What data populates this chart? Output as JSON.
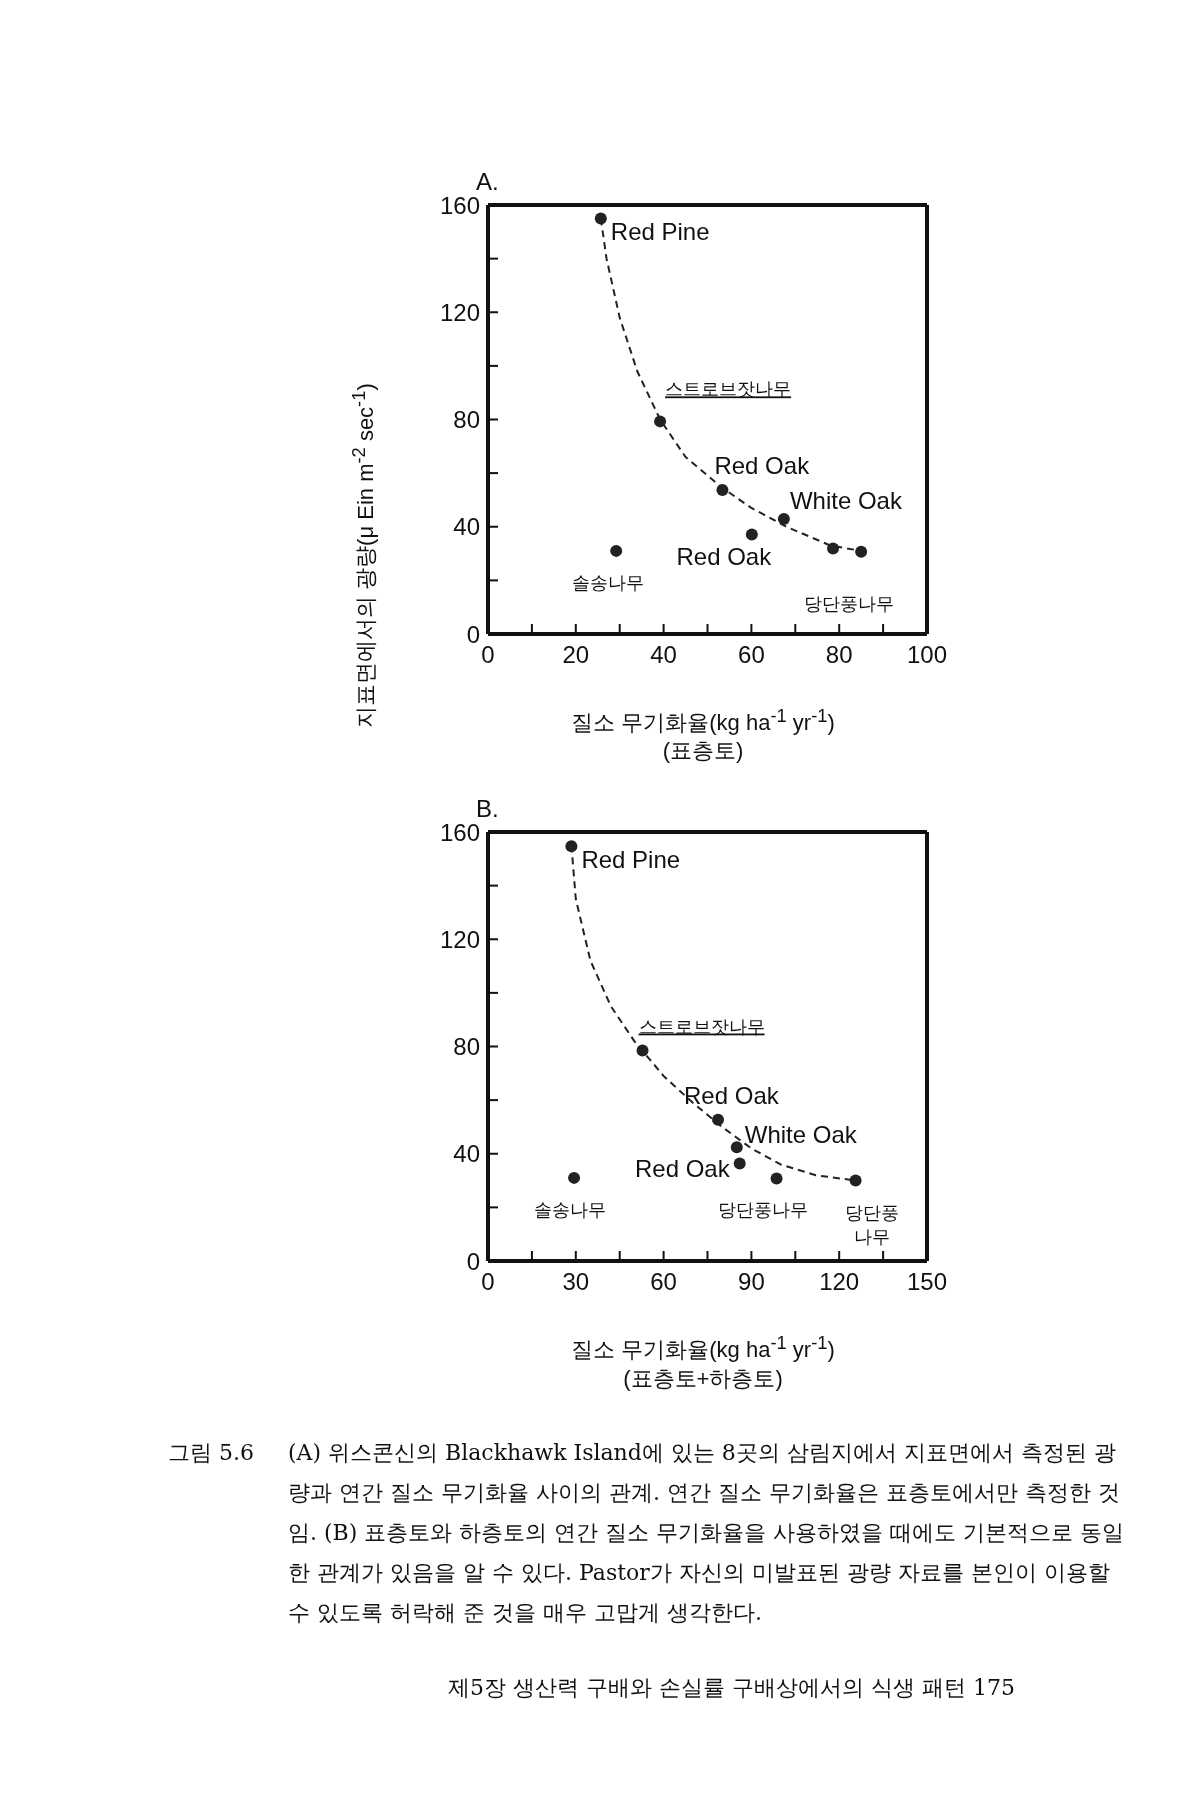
{
  "chart_data": [
    {
      "type": "scatter",
      "title": "A.",
      "xlabel": "질소 무기화율(kg ha$^{-1}$ yr$^{-1}$)\n(표층토)",
      "ylabel": "지표면에서의 광량(μ Ein m$^{-2}$ sec$^{-1}$)",
      "xlim": [
        0,
        100
      ],
      "ylim": [
        0,
        160
      ],
      "xticks": [
        0,
        {
          "value": 10,
          "label": null
        },
        20,
        {
          "value": 30,
          "label": null
        },
        40,
        {
          "value": 50,
          "label": null
        },
        60,
        {
          "value": 70,
          "label": null
        },
        80,
        {
          "value": 90,
          "label": null
        },
        100
      ],
      "yticks": [
        0,
        {
          "value": 20,
          "label": null
        },
        40,
        {
          "value": 60,
          "label": null
        },
        80,
        {
          "value": 100,
          "label": null
        },
        120,
        {
          "value": 140,
          "label": null
        },
        160
      ],
      "marker": "circle",
      "series": [
        {
          "color": "#222222",
          "x": [
            25.7,
            39.2,
            53.4,
            67.4,
            60.1,
            29.2,
            78.6,
            85
          ],
          "values": [
            155,
            79.3,
            53.7,
            42.9,
            37.1,
            31,
            31.9,
            30.7
          ]
        },
        {
          "type": "line",
          "color": "#222222",
          "line_style": "dashed",
          "marker": "none",
          "x": [
            25.7,
            27,
            30,
            34,
            39.2,
            45,
            53,
            60,
            68,
            78,
            85
          ],
          "values": [
            155,
            140,
            118,
            98,
            80,
            66,
            55,
            47,
            40,
            33,
            31
          ]
        }
      ],
      "annotations": [
        {
          "text": "Red Pine",
          "x": 25.7,
          "y": 155
        },
        {
          "text": "스트로브잣나무",
          "x": 39.2,
          "y": 79.3
        },
        {
          "text": "Red Oak",
          "x": 53.4,
          "y": 53.7
        },
        {
          "text": "White Oak",
          "x": 67.4,
          "y": 42.9
        },
        {
          "text": "Red Oak",
          "x": 60.1,
          "y": 37.1
        },
        {
          "text": "솔송나무",
          "x": 29.2,
          "y": 31
        },
        {
          "text": "당단풍나무",
          "x": 85,
          "y": 30.7
        }
      ]
    },
    {
      "type": "scatter",
      "title": "B.",
      "xlabel": "질소 무기화율(kg ha$^{-1}$ yr$^{-1}$)\n(표층토+하층토)",
      "xlim": [
        0,
        150
      ],
      "ylim": [
        0,
        160
      ],
      "xticks": [
        0,
        {
          "value": 15,
          "label": null
        },
        30,
        {
          "value": 45,
          "label": null
        },
        60,
        {
          "value": 75,
          "label": null
        },
        90,
        {
          "value": 105,
          "label": null
        },
        120,
        {
          "value": 135,
          "label": null
        },
        150
      ],
      "yticks": [
        0,
        {
          "value": 20,
          "label": null
        },
        40,
        {
          "value": 60,
          "label": null
        },
        80,
        {
          "value": 100,
          "label": null
        },
        120,
        {
          "value": 140,
          "label": null
        },
        160
      ],
      "marker": "circle",
      "series": [
        {
          "color": "#222222",
          "x": [
            28.5,
            52.8,
            78.6,
            85,
            86,
            29.4,
            98.6,
            125.6
          ],
          "values": [
            154.7,
            78.5,
            52.7,
            42.4,
            36.4,
            31,
            30.8,
            30
          ]
        },
        {
          "type": "line",
          "color": "#222222",
          "line_style": "dashed",
          "marker": "none",
          "x": [
            28.5,
            30,
            35,
            42,
            50,
            60,
            70,
            80,
            90,
            100,
            112,
            125.6
          ],
          "values": [
            155,
            135,
            112,
            95,
            82,
            69,
            59,
            50,
            42,
            36,
            32,
            30
          ]
        }
      ],
      "annotations": [
        {
          "text": "Red Pine",
          "x": 28.5,
          "y": 154.7
        },
        {
          "text": "스트로브잣나무",
          "x": 52.8,
          "y": 78.5
        },
        {
          "text": "Red Oak",
          "x": 78.6,
          "y": 52.7
        },
        {
          "text": "White Oak",
          "x": 85,
          "y": 42.4
        },
        {
          "text": "Red Oak",
          "x": 86,
          "y": 36.4
        },
        {
          "text": "솔송나무",
          "x": 29.4,
          "y": 31
        },
        {
          "text": "당단풍나무",
          "x": 98.6,
          "y": 30.8
        },
        {
          "text": "당단풍\n나무",
          "x": 125.6,
          "y": 30
        },
        "그림 5.6",
        "(A) 위스콘신의 Blackhawk Island에 있는 8곳의 삼림지에서 지표면에서 측정된 광량과 연간 질소 무기화율 사이의 관계. 연간 질소 무기화율은 표층토에서만 측정한 것임. (B) 표층토와 하층토의 연간 질소 무기화율을 사용하였을 때에도 기본적으로 동일한 관계가 있음을 알 수 있다. Pastor가 자신의 미발표된 광량 자료를 본인이 이용할 수 있도록 허락해 준 것을 매우 고맙게 생각한다.",
        "제5장 생산력 구배와 손실률 구배상에서의 식생 패턴 175"
      ]
    }
  ]
}
